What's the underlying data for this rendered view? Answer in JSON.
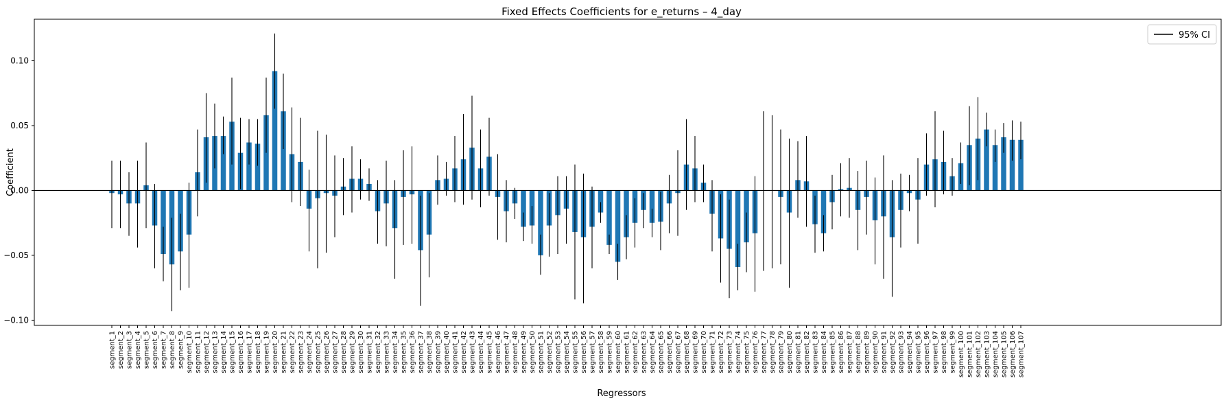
{
  "chart_data": {
    "type": "bar",
    "title": "Fixed Effects Coefficients for e_returns – 4_day",
    "xlabel": "Regressors",
    "ylabel": "Coefficient",
    "ylim": [
      -0.104,
      0.132
    ],
    "yticks": [
      -0.1,
      -0.05,
      0.0,
      0.05,
      0.1
    ],
    "ytick_labels": [
      "−0.10",
      "−0.05",
      "0.00",
      "0.05",
      "0.10"
    ],
    "grid": false,
    "legend": {
      "position": "top-right",
      "entries": [
        "95% CI"
      ]
    },
    "bar_color": "#1f77b4",
    "zero_line": true,
    "categories": [
      "segment_1",
      "segment_2",
      "segment_3",
      "segment_4",
      "segment_5",
      "segment_6",
      "segment_7",
      "segment_8",
      "segment_9",
      "segment_10",
      "segment_11",
      "segment_12",
      "segment_13",
      "segment_14",
      "segment_15",
      "segment_16",
      "segment_17",
      "segment_18",
      "segment_19",
      "segment_20",
      "segment_21",
      "segment_22",
      "segment_23",
      "segment_24",
      "segment_25",
      "segment_26",
      "segment_27",
      "segment_28",
      "segment_29",
      "segment_30",
      "segment_31",
      "segment_32",
      "segment_33",
      "segment_34",
      "segment_35",
      "segment_36",
      "segment_37",
      "segment_38",
      "segment_39",
      "segment_40",
      "segment_41",
      "segment_42",
      "segment_43",
      "segment_44",
      "segment_45",
      "segment_46",
      "segment_47",
      "segment_48",
      "segment_49",
      "segment_50",
      "segment_51",
      "segment_52",
      "segment_53",
      "segment_54",
      "segment_55",
      "segment_56",
      "segment_57",
      "segment_58",
      "segment_59",
      "segment_60",
      "segment_61",
      "segment_62",
      "segment_63",
      "segment_64",
      "segment_65",
      "segment_66",
      "segment_67",
      "segment_68",
      "segment_69",
      "segment_70",
      "segment_71",
      "segment_72",
      "segment_73",
      "segment_74",
      "segment_75",
      "segment_76",
      "segment_77",
      "segment_78",
      "segment_79",
      "segment_80",
      "segment_81",
      "segment_82",
      "segment_83",
      "segment_84",
      "segment_85",
      "segment_86",
      "segment_87",
      "segment_88",
      "segment_89",
      "segment_90",
      "segment_91",
      "segment_92",
      "segment_93",
      "segment_94",
      "segment_95",
      "segment_96",
      "segment_97",
      "segment_98",
      "segment_99",
      "segment_100",
      "segment_101",
      "segment_102",
      "segment_103",
      "segment_104",
      "segment_105",
      "segment_106",
      "segment_107"
    ],
    "values": [
      -0.002,
      -0.003,
      -0.01,
      -0.01,
      0.004,
      -0.027,
      -0.049,
      -0.057,
      -0.047,
      -0.034,
      0.014,
      0.041,
      0.042,
      0.042,
      0.053,
      0.029,
      0.037,
      0.036,
      0.058,
      0.092,
      0.061,
      0.028,
      0.022,
      -0.014,
      -0.006,
      -0.002,
      -0.004,
      0.003,
      0.009,
      0.009,
      0.005,
      -0.016,
      -0.01,
      -0.029,
      -0.005,
      -0.003,
      -0.046,
      -0.034,
      0.008,
      0.009,
      0.017,
      0.024,
      0.033,
      0.017,
      0.026,
      -0.005,
      -0.016,
      -0.01,
      -0.028,
      -0.027,
      -0.05,
      -0.027,
      -0.019,
      -0.014,
      -0.032,
      -0.036,
      -0.028,
      -0.017,
      -0.042,
      -0.055,
      -0.036,
      -0.025,
      -0.015,
      -0.025,
      -0.024,
      -0.01,
      -0.002,
      0.02,
      0.017,
      0.006,
      -0.018,
      -0.037,
      -0.045,
      -0.059,
      -0.04,
      -0.033,
      0.0,
      0.0,
      -0.005,
      -0.017,
      0.008,
      0.007,
      -0.026,
      -0.033,
      -0.009,
      0.001,
      0.002,
      -0.015,
      -0.005,
      -0.023,
      -0.02,
      -0.036,
      -0.015,
      -0.002,
      -0.007,
      0.02,
      0.024,
      0.022,
      0.011,
      0.021,
      0.035,
      0.04,
      0.047,
      0.035,
      0.041,
      0.039,
      0.039
    ],
    "ci_low": [
      -0.029,
      -0.029,
      -0.035,
      -0.044,
      -0.029,
      -0.06,
      -0.07,
      -0.093,
      -0.077,
      -0.075,
      -0.02,
      0.006,
      0.017,
      0.028,
      0.02,
      0.001,
      0.02,
      0.019,
      0.029,
      0.063,
      0.032,
      -0.009,
      -0.012,
      -0.047,
      -0.06,
      -0.048,
      -0.036,
      -0.019,
      -0.017,
      -0.007,
      -0.008,
      -0.041,
      -0.043,
      -0.068,
      -0.042,
      -0.041,
      -0.089,
      -0.067,
      -0.011,
      -0.004,
      -0.009,
      -0.011,
      -0.007,
      -0.013,
      -0.004,
      -0.038,
      -0.04,
      -0.022,
      -0.039,
      -0.041,
      -0.065,
      -0.051,
      -0.049,
      -0.041,
      -0.084,
      -0.087,
      -0.06,
      -0.025,
      -0.049,
      -0.069,
      -0.053,
      -0.044,
      -0.029,
      -0.036,
      -0.046,
      -0.033,
      -0.035,
      -0.015,
      -0.009,
      -0.009,
      -0.047,
      -0.071,
      -0.083,
      -0.077,
      -0.063,
      -0.078,
      -0.062,
      -0.06,
      -0.057,
      -0.075,
      -0.021,
      -0.028,
      -0.048,
      -0.047,
      -0.03,
      -0.02,
      -0.021,
      -0.046,
      -0.034,
      -0.057,
      -0.068,
      -0.082,
      -0.044,
      -0.016,
      -0.041,
      -0.004,
      -0.013,
      -0.003,
      -0.004,
      0.005,
      0.004,
      0.008,
      0.034,
      0.022,
      0.029,
      0.023,
      0.024
    ],
    "ci_high": [
      0.023,
      0.023,
      0.014,
      0.023,
      0.037,
      0.005,
      -0.028,
      -0.021,
      -0.018,
      0.006,
      0.047,
      0.075,
      0.067,
      0.057,
      0.087,
      0.056,
      0.055,
      0.055,
      0.087,
      0.121,
      0.09,
      0.064,
      0.056,
      0.016,
      0.046,
      0.043,
      0.027,
      0.025,
      0.034,
      0.024,
      0.017,
      0.008,
      0.023,
      0.008,
      0.031,
      0.034,
      -0.004,
      -0.002,
      0.027,
      0.022,
      0.042,
      0.059,
      0.073,
      0.047,
      0.056,
      0.028,
      0.008,
      0.002,
      -0.017,
      -0.012,
      -0.034,
      -0.002,
      0.011,
      0.011,
      0.02,
      0.013,
      0.003,
      -0.009,
      -0.034,
      -0.041,
      -0.019,
      -0.006,
      -0.002,
      -0.014,
      -0.001,
      0.012,
      0.031,
      0.055,
      0.042,
      0.02,
      0.008,
      -0.003,
      -0.007,
      -0.041,
      -0.017,
      0.011,
      0.061,
      0.058,
      0.047,
      0.04,
      0.038,
      0.042,
      -0.004,
      -0.019,
      0.012,
      0.021,
      0.025,
      0.015,
      0.023,
      0.01,
      0.027,
      0.008,
      0.013,
      0.012,
      0.025,
      0.044,
      0.061,
      0.046,
      0.025,
      0.037,
      0.065,
      0.072,
      0.06,
      0.047,
      0.052,
      0.054,
      0.053
    ]
  }
}
